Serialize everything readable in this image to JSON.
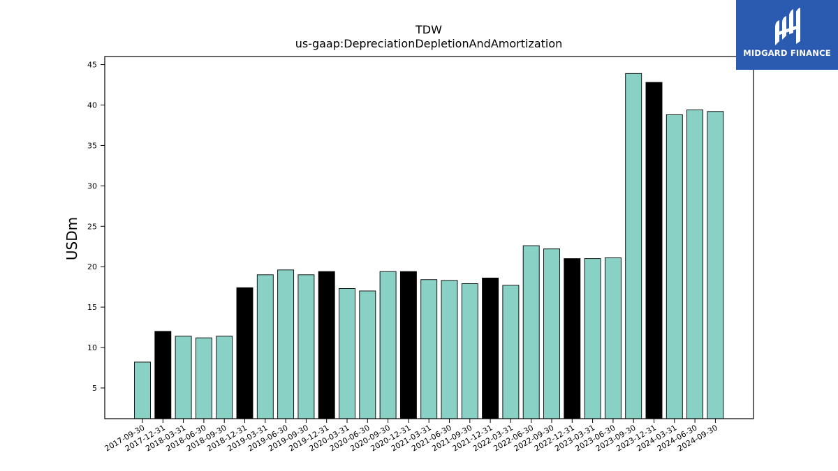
{
  "chart_data": {
    "type": "bar",
    "title": "TDW",
    "subtitle": "us-gaap:DepreciationDepletionAndAmortization",
    "xlabel": "",
    "ylabel": "USDm",
    "ylim": [
      1.2,
      46.0
    ],
    "yticks": [
      5,
      10,
      15,
      20,
      25,
      30,
      35,
      40,
      45
    ],
    "grid": false,
    "categories": [
      "2017-09-30",
      "2017-12-31",
      "2018-03-31",
      "2018-06-30",
      "2018-09-30",
      "2018-12-31",
      "2019-03-31",
      "2019-06-30",
      "2019-09-30",
      "2019-12-31",
      "2020-03-31",
      "2020-06-30",
      "2020-09-30",
      "2020-12-31",
      "2021-03-31",
      "2021-06-30",
      "2021-09-30",
      "2021-12-31",
      "2022-03-31",
      "2022-06-30",
      "2022-09-30",
      "2022-12-31",
      "2023-03-31",
      "2023-06-30",
      "2023-09-30",
      "2023-12-31",
      "2024-03-31",
      "2024-06-30",
      "2024-09-30"
    ],
    "values": [
      8.2,
      12.0,
      11.4,
      11.2,
      11.4,
      17.4,
      19.0,
      19.6,
      19.0,
      19.4,
      17.3,
      17.0,
      19.4,
      19.4,
      18.4,
      18.3,
      17.9,
      18.6,
      17.7,
      22.6,
      22.2,
      21.0,
      21.0,
      21.1,
      43.9,
      42.8,
      38.8,
      39.4,
      39.2
    ],
    "bar_kinds": [
      "q",
      "y",
      "q",
      "q",
      "q",
      "y",
      "q",
      "q",
      "q",
      "y",
      "q",
      "q",
      "q",
      "y",
      "q",
      "q",
      "q",
      "y",
      "q",
      "q",
      "q",
      "y",
      "q",
      "q",
      "q",
      "y",
      "q",
      "q",
      "q"
    ],
    "colors": {
      "q": "#88d1c4",
      "y": "#000000",
      "edge": "#000000"
    }
  },
  "logo": {
    "name": "MIDGARD FINANCE",
    "icon": "midgard-logo-icon",
    "background": "#2b5bb1"
  }
}
